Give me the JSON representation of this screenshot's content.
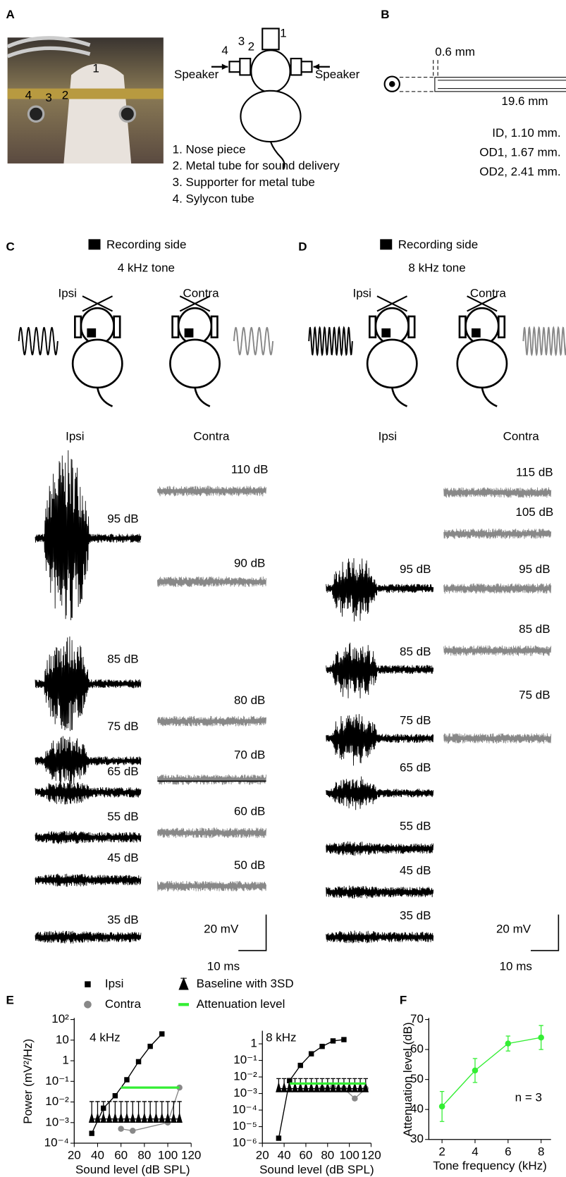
{
  "panel_labels": [
    "A",
    "B",
    "C",
    "D",
    "E",
    "F"
  ],
  "panel_a": {
    "photo_labels": [
      "1",
      "4",
      "3",
      "2"
    ],
    "diagram_labels": [
      "1",
      "2",
      "3",
      "4"
    ],
    "speaker_left": "Speaker",
    "speaker_right": "Speaker",
    "legend": [
      "1. Nose piece",
      "2. Metal tube for sound delivery",
      "3. Supporter for metal tube",
      "4. Sylycon tube"
    ]
  },
  "panel_b": {
    "dims": [
      "0.6 mm",
      "19.6 mm"
    ],
    "specs": [
      "ID, 1.10 mm.",
      "OD1, 1.67 mm.",
      "OD2, 2.41 mm."
    ]
  },
  "panel_c": {
    "legend": "Recording side",
    "tone": "4 kHz tone",
    "sides": [
      "Ipsi",
      "Contra"
    ],
    "trace_headers": [
      "Ipsi",
      "Contra"
    ],
    "ipsi_levels": [
      "95 dB",
      "85 dB",
      "75 dB",
      "65 dB",
      "55 dB",
      "45 dB",
      "35 dB"
    ],
    "contra_levels": [
      "110 dB",
      "90 dB",
      "80 dB",
      "70 dB",
      "60 dB",
      "50 dB"
    ],
    "scale": [
      "20 mV",
      "10 ms"
    ]
  },
  "panel_d": {
    "legend": "Recording side",
    "tone": "8 kHz tone",
    "sides": [
      "Ipsi",
      "Contra"
    ],
    "trace_headers": [
      "Ipsi",
      "Contra"
    ],
    "ipsi_levels": [
      "95 dB",
      "85 dB",
      "75 dB",
      "65 dB",
      "55 dB",
      "45 dB",
      "35 dB"
    ],
    "contra_levels": [
      "115 dB",
      "105 dB",
      "95 dB",
      "85 dB",
      "75 dB"
    ],
    "scale": [
      "20 mV",
      "10 ms"
    ]
  },
  "chart_data": [
    {
      "type": "line",
      "title": "4 kHz",
      "x_label": "Sound level (dB SPL)",
      "y_label": "Power (mV²/Hz)",
      "log_y": true,
      "xlim": [
        20,
        120
      ],
      "xticks": [
        20,
        40,
        60,
        80,
        100,
        120
      ],
      "ylim": [
        0.0001,
        100
      ],
      "yticks": [
        {
          "value": 0.0001,
          "label": "10⁻⁴"
        },
        {
          "value": 0.001,
          "label": "10⁻³"
        },
        {
          "value": 0.01,
          "label": "10⁻²"
        },
        {
          "value": 0.1,
          "label": "10⁻¹"
        },
        1,
        10,
        {
          "value": 100,
          "label": "10²"
        }
      ],
      "series": [
        {
          "name": "Ipsi",
          "color": "#000000",
          "marker": "square",
          "x": [
            35,
            45,
            55,
            65,
            75,
            85,
            95
          ],
          "values": [
            0.0003,
            0.005,
            0.02,
            0.12,
            0.9,
            5,
            20
          ]
        },
        {
          "name": "Contra",
          "color": "#888888",
          "marker": "circle",
          "x": [
            60,
            70,
            100,
            110
          ],
          "values": [
            0.0005,
            0.0004,
            0.001,
            0.05
          ]
        },
        {
          "name": "Baseline with 3SD",
          "color": "#000000",
          "marker": "triangle",
          "x": [
            35,
            40,
            45,
            50,
            55,
            60,
            65,
            70,
            75,
            80,
            85,
            90,
            95,
            100,
            105,
            110
          ],
          "values": [
            0.0015,
            0.0015,
            0.0015,
            0.0015,
            0.0015,
            0.0015,
            0.0015,
            0.0015,
            0.0015,
            0.0015,
            0.0015,
            0.0015,
            0.0015,
            0.0015,
            0.0015,
            0.0015
          ],
          "errors": [
            0.009,
            0.009,
            0.009,
            0.009,
            0.009,
            0.009,
            0.009,
            0.009,
            0.009,
            0.009,
            0.009,
            0.009,
            0.009,
            0.009,
            0.009,
            0.009
          ]
        },
        {
          "name": "Attenuation level",
          "color": "#33ee33",
          "marker": "none",
          "x": [
            60,
            110
          ],
          "values": [
            0.05,
            0.05
          ]
        }
      ]
    },
    {
      "type": "line",
      "title": "8 kHz",
      "x_label": "Sound level (dB SPL)",
      "log_y": true,
      "xlim": [
        20,
        120
      ],
      "xticks": [
        20,
        40,
        60,
        80,
        100,
        120
      ],
      "ylim": [
        1e-06,
        5
      ],
      "yticks": [
        {
          "value": 1e-06,
          "label": "10⁻⁶"
        },
        {
          "value": 1e-05,
          "label": "10⁻⁵"
        },
        {
          "value": 0.0001,
          "label": "10⁻⁴"
        },
        {
          "value": 0.001,
          "label": "10⁻³"
        },
        {
          "value": 0.01,
          "label": "10⁻²"
        },
        {
          "value": 0.1,
          "label": "10⁻¹"
        },
        1
      ],
      "series": [
        {
          "color": "#000000",
          "marker": "square",
          "x": [
            35,
            45,
            55,
            65,
            75,
            85,
            95
          ],
          "values": [
            2e-06,
            0.006,
            0.05,
            0.25,
            0.7,
            1.5,
            1.8
          ]
        },
        {
          "color": "#888888",
          "marker": "circle",
          "x": [
            75,
            85,
            95,
            105,
            115
          ],
          "values": [
            0.002,
            0.0025,
            0.002,
            0.0005,
            0.002
          ]
        },
        {
          "color": "#000000",
          "marker": "triangle",
          "x": [
            35,
            40,
            45,
            50,
            55,
            60,
            65,
            70,
            75,
            80,
            85,
            90,
            95,
            100,
            105,
            110,
            115
          ],
          "values": [
            0.002,
            0.002,
            0.002,
            0.002,
            0.002,
            0.002,
            0.002,
            0.002,
            0.002,
            0.002,
            0.002,
            0.002,
            0.002,
            0.002,
            0.002,
            0.002,
            0.002
          ],
          "errors": [
            0.006,
            0.006,
            0.006,
            0.006,
            0.006,
            0.006,
            0.006,
            0.006,
            0.006,
            0.006,
            0.006,
            0.006,
            0.006,
            0.006,
            0.006,
            0.006,
            0.006
          ]
        },
        {
          "color": "#33ee33",
          "marker": "none",
          "x": [
            45,
            115
          ],
          "values": [
            0.004,
            0.004
          ]
        }
      ]
    },
    {
      "type": "line",
      "x_label": "Tone frequency (kHz)",
      "y_label": "Attenuation level (dB)",
      "annotation": "n = 3",
      "xlim": [
        1.2,
        8.6
      ],
      "xticks": [
        2,
        4,
        6,
        8
      ],
      "ylim": [
        30,
        70
      ],
      "yticks": [
        30,
        40,
        50,
        60,
        70
      ],
      "series": [
        {
          "color": "#33ee33",
          "marker": "circle",
          "x": [
            2,
            4,
            6,
            8
          ],
          "values": [
            41,
            53,
            62,
            64
          ],
          "errors": [
            5,
            4,
            2.5,
            4
          ]
        }
      ]
    }
  ]
}
